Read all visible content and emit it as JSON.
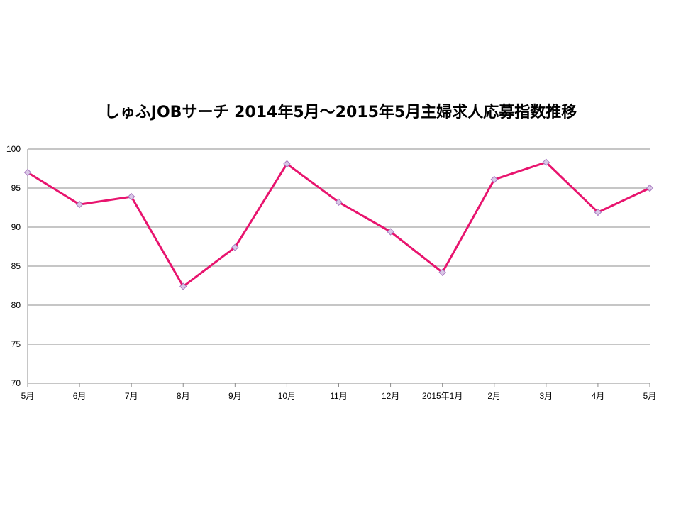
{
  "chart_data": {
    "type": "line",
    "title": "しゅふJOBサーチ  2014年5月～2015年5月主婦求人応募指数推移",
    "xlabel": "",
    "ylabel": "",
    "categories": [
      "5月",
      "6月",
      "7月",
      "8月",
      "9月",
      "10月",
      "11月",
      "12月",
      "2015年1月",
      "2月",
      "3月",
      "4月",
      "5月"
    ],
    "series": [
      {
        "values": [
          97.0,
          92.9,
          93.9,
          82.4,
          87.4,
          98.1,
          93.2,
          89.4,
          84.2,
          96.1,
          98.3,
          91.9,
          95.0
        ],
        "color": "#e8146e",
        "marker_fill": "#d9c8e6",
        "marker_stroke": "#a878c0"
      }
    ],
    "ylim": [
      70,
      100
    ],
    "yticks": [
      70,
      75,
      80,
      85,
      90,
      95,
      100
    ],
    "grid": true,
    "legend": "none"
  }
}
